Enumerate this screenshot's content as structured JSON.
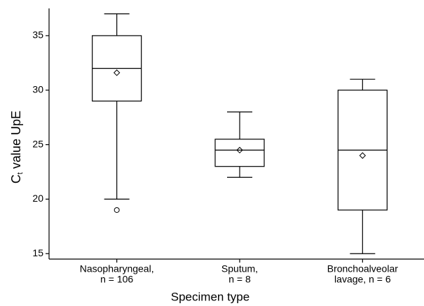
{
  "chart_data": {
    "type": "box",
    "ylabel": {
      "text": "C",
      "subscript": "t",
      "rest": " value UpE"
    },
    "xlabel": "Specimen type",
    "categories": [
      [
        "Nasopharyngeal,",
        "n = 106"
      ],
      [
        "Sputum,",
        "n = 8"
      ],
      [
        "Bronchoalveolar",
        "lavage, n = 6"
      ]
    ],
    "boxes": [
      {
        "whisker_low": 20,
        "q1": 29,
        "median": 32,
        "q3": 35,
        "whisker_high": 37,
        "mean": 31.6,
        "outliers": [
          19
        ]
      },
      {
        "whisker_low": 22,
        "q1": 23,
        "median": 24.5,
        "q3": 25.5,
        "whisker_high": 28,
        "mean": 24.5,
        "outliers": []
      },
      {
        "whisker_low": 15,
        "q1": 19,
        "median": 24.5,
        "q3": 30,
        "whisker_high": 31,
        "mean": 24,
        "outliers": []
      }
    ],
    "ylim": [
      14.5,
      37.5
    ],
    "yticks": [
      15,
      20,
      25,
      30,
      35
    ],
    "color": "#000000"
  }
}
